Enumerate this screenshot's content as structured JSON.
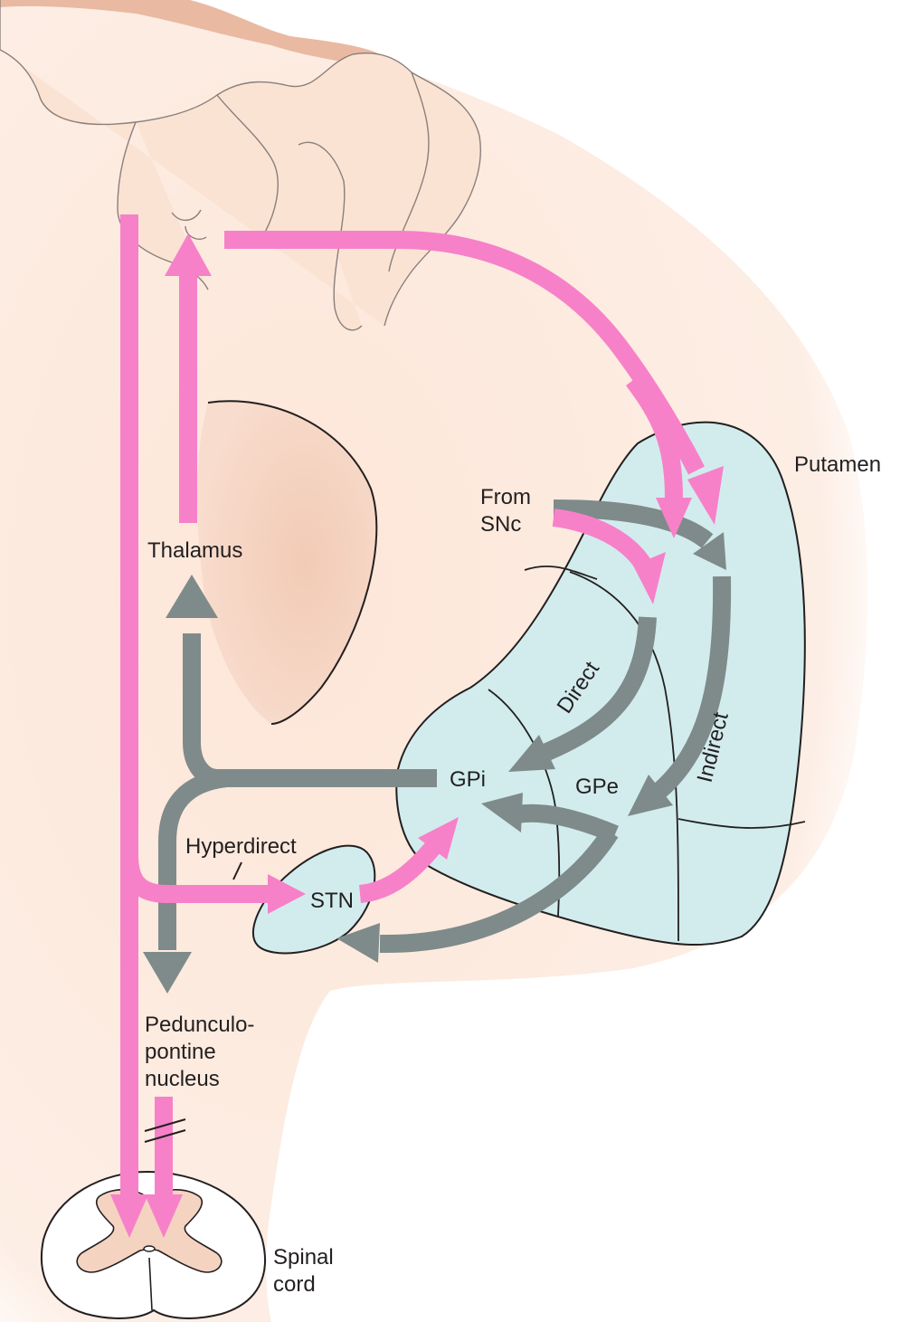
{
  "labels": {
    "putamen": "Putamen",
    "from_snc_line1": "From",
    "from_snc_line2": "SNc",
    "thalamus": "Thalamus",
    "direct": "Direct",
    "indirect": "Indirect",
    "gpi": "GPi",
    "gpe": "GPe",
    "hyperdirect": "Hyperdirect",
    "stn": "STN",
    "ppn_line1": "Pedunculo-",
    "ppn_line2": "pontine",
    "ppn_line3": "nucleus",
    "spinal_line1": "Spinal",
    "spinal_line2": "cord"
  },
  "colors": {
    "background": "#ffffff",
    "brain_tissue": "#fde8dc",
    "cortex_fold": "#fbe3d4",
    "cortex_surface": "#e9b9a2",
    "thalamus_fill": "#f5d3c1",
    "basal_ganglia": "#d2ecee",
    "excitatory_pathway": "#f781c8",
    "inhibitory_pathway": "#7e8b8a",
    "outline": "#231f20"
  }
}
